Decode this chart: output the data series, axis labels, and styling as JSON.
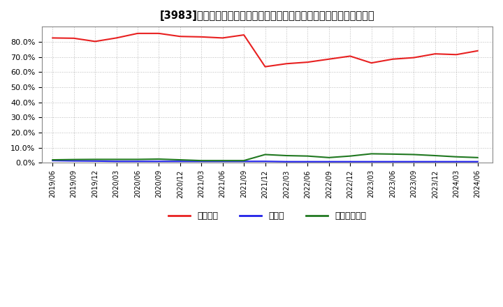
{
  "title": "[3983]　自己資本、のれん、繰延税金資産の総資産に対する比率の推移",
  "dates": [
    "2019/06",
    "2019/09",
    "2019/12",
    "2020/03",
    "2020/06",
    "2020/09",
    "2020/12",
    "2021/03",
    "2021/06",
    "2021/09",
    "2021/12",
    "2022/03",
    "2022/06",
    "2022/09",
    "2022/12",
    "2023/03",
    "2023/06",
    "2023/09",
    "2023/12",
    "2024/03",
    "2024/06"
  ],
  "equity": [
    82.5,
    82.3,
    80.2,
    82.5,
    85.5,
    85.5,
    83.5,
    83.2,
    82.5,
    84.5,
    63.5,
    65.5,
    66.5,
    68.5,
    70.5,
    66.0,
    68.5,
    69.5,
    72.0,
    71.5,
    74.0
  ],
  "noren": [
    1.5,
    1.3,
    1.2,
    1.0,
    1.0,
    1.0,
    1.0,
    1.0,
    1.0,
    1.0,
    1.0,
    0.8,
    0.8,
    0.8,
    0.8,
    0.8,
    0.8,
    0.8,
    0.8,
    0.8,
    0.8
  ],
  "deferred_tax": [
    2.0,
    2.2,
    2.3,
    2.3,
    2.3,
    2.5,
    2.0,
    1.5,
    1.5,
    1.5,
    5.5,
    4.8,
    4.5,
    3.5,
    4.5,
    6.0,
    5.8,
    5.5,
    4.8,
    4.0,
    3.5
  ],
  "equity_color": "#e82020",
  "noren_color": "#2020e8",
  "deferred_tax_color": "#207820",
  "bg_color": "#ffffff",
  "plot_bg_color": "#ffffff",
  "grid_color": "#bbbbbb",
  "ylim": [
    0,
    90
  ],
  "yticks": [
    0,
    10,
    20,
    30,
    40,
    50,
    60,
    70,
    80
  ],
  "legend_labels": [
    "自己資本",
    "のれん",
    "繰延税金資産"
  ]
}
